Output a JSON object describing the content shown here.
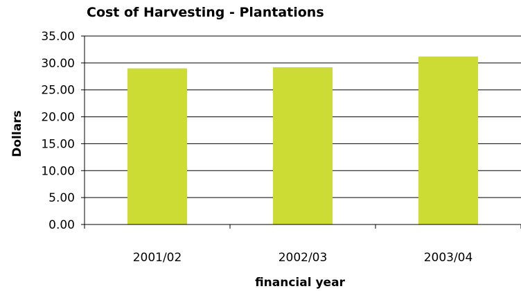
{
  "chart_data": {
    "type": "bar",
    "title": "Cost of Harvesting - Plantations",
    "xlabel": "financial year",
    "ylabel": "Dollars",
    "categories": [
      "2001/02",
      "2002/03",
      "2003/04"
    ],
    "values": [
      29.0,
      29.2,
      31.2
    ],
    "ylim": [
      0,
      35
    ],
    "yticks": [
      "0.00",
      "5.00",
      "10.00",
      "15.00",
      "20.00",
      "25.00",
      "30.00",
      "35.00"
    ],
    "grid": true,
    "legend": "none",
    "bar_color": "#cddc34"
  }
}
